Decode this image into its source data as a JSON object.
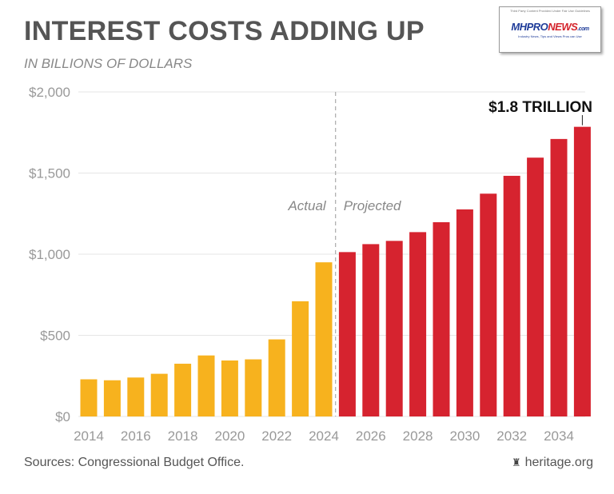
{
  "title": "INTEREST COSTS ADDING UP",
  "subtitle": "IN BILLIONS OF DOLLARS",
  "logo": {
    "fine_print": "Third Party Content Provided Under Fair Use Guidelines",
    "brand_mh": "MH",
    "brand_pro": "PRO",
    "brand_news": "NEWS",
    "brand_com": ".com",
    "tagline": "Industry News, Tips and Views Pros can Use"
  },
  "source": "Sources: Congressional Budget Office.",
  "credit": "heritage.org",
  "colors": {
    "actual": "#F7B21E",
    "projected": "#D6232F",
    "divider": "#AAAAAA",
    "grid": "#E6E6E6"
  },
  "chart_data": {
    "type": "bar",
    "categories": [
      "2014",
      "2015",
      "2016",
      "2017",
      "2018",
      "2019",
      "2020",
      "2021",
      "2022",
      "2023",
      "2024",
      "2025",
      "2026",
      "2027",
      "2028",
      "2029",
      "2030",
      "2031",
      "2032",
      "2033",
      "2034",
      "2035"
    ],
    "series": [
      {
        "name": "Actual",
        "values": [
          229,
          223,
          240,
          263,
          325,
          376,
          345,
          352,
          475,
          710,
          950,
          null,
          null,
          null,
          null,
          null,
          null,
          null,
          null,
          null,
          null,
          null
        ]
      },
      {
        "name": "Projected",
        "values": [
          null,
          null,
          null,
          null,
          null,
          null,
          null,
          null,
          null,
          null,
          null,
          1013,
          1062,
          1082,
          1136,
          1197,
          1276,
          1373,
          1483,
          1595,
          1710,
          1785
        ]
      }
    ],
    "x_tick_labels": [
      "2014",
      "2016",
      "2018",
      "2020",
      "2022",
      "2024",
      "2026",
      "2028",
      "2030",
      "2032",
      "2034"
    ],
    "y_tick_labels": [
      "$0",
      "$500",
      "$1,000",
      "$1,500",
      "$2,000"
    ],
    "y_ticks": [
      0,
      500,
      1000,
      1500,
      2000
    ],
    "ylim": [
      0,
      2000
    ],
    "grid": true,
    "phase_labels": {
      "actual": "Actual",
      "projected": "Projected"
    },
    "annotation": "$1.8 TRILLION"
  }
}
